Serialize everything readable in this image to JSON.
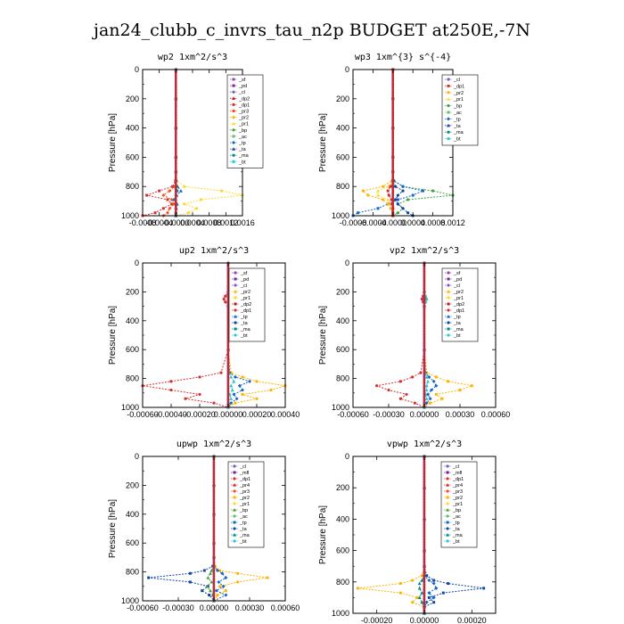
{
  "figure": {
    "title": "jan24_clubb_c_invrs_tau_n2p  BUDGET at250E,-7N"
  },
  "colors": {
    "_sf": "#8e44ad",
    "_pd": "#7b1fa2",
    "_cl": "#7e57c2",
    "_dp2": "#b71c1c",
    "_dp1": "#d32f2f",
    "_pr3": "#f4511e",
    "_pr2": "#ffb300",
    "_pr1": "#fdd835",
    "_bp": "#43a047",
    "_ac": "#66bb6a",
    "_tp": "#1565c0",
    "_ta": "#0d47a1",
    "_ma": "#00897b",
    "_bt": "#26c6da",
    "_mfl": "#6a1b9a",
    "_pr4": "#c62828",
    "zero": "#c62828"
  },
  "chart_data": [
    {
      "type": "line",
      "title": "wp2   1xm^2/s^3",
      "ylabel": "Pressure [hPa]",
      "xlim": [
        -0.0008,
        0.0016
      ],
      "ylim": [
        1000,
        0
      ],
      "xticks": [
        -0.0008,
        -0.0004,
        0.0,
        0.0004,
        0.0008,
        0.0012,
        0.0016
      ],
      "xtick_labels": [
        "-0.0008",
        "-0.0004",
        "-0.0000",
        "0.0004",
        "0.0008",
        "0.0012",
        "0.0016"
      ],
      "yticks": [
        0,
        200,
        400,
        600,
        800,
        1000
      ],
      "ytick_labels": [
        "0",
        "200",
        "400",
        "600",
        "800",
        "1000"
      ],
      "legend": [
        "_sf",
        "_pd",
        "_cl",
        "_dp2",
        "_dp1",
        "_pr3",
        "_pr2",
        "_pr1",
        "_bp",
        "_ac",
        "_tp",
        "_ta",
        "_ma",
        "_bt"
      ],
      "legend_position": "top-right",
      "y": [
        0,
        200,
        400,
        600,
        700,
        760,
        800,
        830,
        860,
        890,
        920,
        950,
        980,
        1000
      ],
      "series": [
        {
          "name": "_pr1",
          "x": [
            0,
            0,
            0,
            0,
            0,
            2e-05,
            0.0002,
            0.0011,
            0.0016,
            0.0006,
            0.0002,
            0.0005,
            0.0003,
            0
          ]
        },
        {
          "name": "_dp1",
          "x": [
            0,
            0,
            0,
            0,
            0,
            -1e-05,
            -8e-05,
            -0.0004,
            -0.0007,
            -0.0002,
            -0.0001,
            -0.0003,
            -0.0005,
            -0.0008
          ]
        },
        {
          "name": "_pr3",
          "x": [
            0,
            0,
            0,
            0,
            0,
            0,
            -3e-05,
            -0.00015,
            -0.0003,
            -0.0001,
            -5e-05,
            -0.00015,
            -0.0002,
            -0.0003
          ]
        },
        {
          "name": "_tp",
          "x": [
            0,
            0,
            0,
            0,
            0,
            0,
            4e-05,
            0.00012,
            2e-05,
            -5e-05,
            3e-05,
            1e-05,
            0,
            0
          ]
        },
        {
          "name": "_ma",
          "x": [
            0,
            0,
            0,
            0,
            0,
            0,
            1e-05,
            3e-05,
            0,
            -2e-05,
            1e-05,
            0,
            0,
            0
          ]
        }
      ]
    },
    {
      "type": "line",
      "title": "wp3   1xm^{3} s^{-4}",
      "ylabel": "Pressure [hPa]",
      "xlim": [
        -0.0008,
        0.0012
      ],
      "ylim": [
        1000,
        0
      ],
      "xticks": [
        -0.0008,
        -0.0004,
        0.0,
        0.0004,
        0.0008,
        0.0012
      ],
      "xtick_labels": [
        "-0.0008",
        "-0.0004",
        "-0.0000",
        "0.0004",
        "0.0008",
        "0.0012"
      ],
      "yticks": [
        0,
        200,
        400,
        600,
        800,
        1000
      ],
      "ytick_labels": [
        "0",
        "200",
        "400",
        "600",
        "800",
        "1000"
      ],
      "legend": [
        "_cl",
        "_dp1",
        "_pr2",
        "_pr1",
        "_bp",
        "_ac",
        "_tp",
        "_ta",
        "_ma",
        "_bt"
      ],
      "legend_position": "top-right",
      "y": [
        0,
        200,
        400,
        600,
        700,
        760,
        800,
        830,
        860,
        890,
        920,
        950,
        980,
        1000
      ],
      "series": [
        {
          "name": "_bp",
          "x": [
            0,
            0,
            0,
            0,
            0,
            2e-05,
            0.0002,
            0.0008,
            0.0012,
            0.0003,
            0.0001,
            0.0002,
            0.0001,
            0
          ]
        },
        {
          "name": "_tp",
          "x": [
            0,
            0,
            0,
            0,
            0,
            1e-05,
            0.0002,
            0.0006,
            0.0004,
            0.0001,
            -0.0001,
            -0.0003,
            -0.0007,
            -0.0008
          ]
        },
        {
          "name": "_pr2",
          "x": [
            0,
            0,
            0,
            0,
            0,
            -2e-05,
            -0.0002,
            -0.0006,
            -0.0005,
            -0.0002,
            -0.0001,
            -5e-05,
            0,
            0
          ]
        },
        {
          "name": "_pr1",
          "x": [
            0,
            0,
            0,
            0,
            0,
            -1e-05,
            -0.0001,
            -0.0003,
            -0.0003,
            -0.0001,
            -5e-05,
            0,
            0,
            0
          ]
        },
        {
          "name": "_ta",
          "x": [
            0,
            0,
            0,
            0,
            0,
            0,
            5e-05,
            0.0002,
            0.0001,
            5e-05,
            0.0001,
            0.0002,
            0.0003,
            0.0004
          ]
        },
        {
          "name": "_dp1",
          "x": [
            0,
            0,
            0,
            0,
            0,
            0,
            -5e-05,
            -0.0001,
            -8e-05,
            -3e-05,
            -2e-05,
            0,
            0,
            0
          ]
        }
      ]
    },
    {
      "type": "line",
      "title": "up2   1xm^2/s^3",
      "ylabel": "Pressure [hPa]",
      "xlim": [
        -0.0006,
        0.0004
      ],
      "ylim": [
        1000,
        0
      ],
      "xticks": [
        -0.0006,
        -0.0004,
        -0.0002,
        0.0,
        0.0002,
        0.0004
      ],
      "xtick_labels": [
        "-0.00060",
        "-0.00040",
        "-0.00020",
        "0.00000",
        "0.00020",
        "0.00040"
      ],
      "yticks": [
        0,
        200,
        400,
        600,
        800,
        1000
      ],
      "ytick_labels": [
        "0",
        "200",
        "400",
        "600",
        "800",
        "1000"
      ],
      "legend": [
        "_sf",
        "_pd",
        "_cl",
        "_pr2",
        "_pr1",
        "_dp2",
        "_dp1",
        "_tp",
        "_ta",
        "_ma",
        "_bt"
      ],
      "legend_position": "top-right",
      "y": [
        0,
        200,
        230,
        250,
        270,
        300,
        600,
        760,
        790,
        820,
        850,
        880,
        910,
        940,
        970,
        1000
      ],
      "series": [
        {
          "name": "_dp1",
          "x": [
            0,
            0,
            -2e-05,
            -3e-05,
            -2e-05,
            0,
            0,
            -5e-05,
            -0.0002,
            -0.0004,
            -0.0006,
            -0.0004,
            -0.0002,
            -0.0003,
            -0.0001,
            0
          ]
        },
        {
          "name": "_pr2",
          "x": [
            0,
            0,
            1e-05,
            2e-05,
            1e-05,
            0,
            0,
            2e-05,
            0.0001,
            0.0002,
            0.0004,
            0.0003,
            0.0001,
            0.0002,
            5e-05,
            0
          ]
        },
        {
          "name": "_tp",
          "x": [
            0,
            0,
            5e-06,
            1e-05,
            5e-06,
            0,
            0,
            1e-05,
            5e-05,
            0.00015,
            8e-05,
            0.0001,
            4e-05,
            6e-05,
            2e-05,
            0
          ]
        },
        {
          "name": "_bt",
          "x": [
            0,
            0,
            1e-05,
            2e-05,
            1e-05,
            0,
            0,
            5e-06,
            2e-05,
            4e-05,
            2e-05,
            3e-05,
            1e-05,
            2e-05,
            0,
            0
          ]
        }
      ]
    },
    {
      "type": "line",
      "title": "vp2   1xm^2/s^3",
      "ylabel": "Pressure [hPa]",
      "xlim": [
        -0.0006,
        0.0006
      ],
      "ylim": [
        1000,
        0
      ],
      "xticks": [
        -0.0006,
        -0.0003,
        0.0,
        0.0003,
        0.0006
      ],
      "xtick_labels": [
        "-0.00060",
        "-0.00030",
        "0.00000",
        "0.00030",
        "0.00060"
      ],
      "yticks": [
        0,
        200,
        400,
        600,
        800,
        1000
      ],
      "ytick_labels": [
        "0",
        "200",
        "400",
        "600",
        "800",
        "1000"
      ],
      "legend": [
        "_sf",
        "_pd",
        "_cl",
        "_pr2",
        "_pr1",
        "_dp2",
        "_dp1",
        "_tp",
        "_ta",
        "_ma",
        "_bt"
      ],
      "legend_position": "top-right",
      "y": [
        0,
        200,
        230,
        250,
        270,
        300,
        600,
        760,
        790,
        820,
        850,
        880,
        910,
        940,
        970,
        1000
      ],
      "series": [
        {
          "name": "_dp1",
          "x": [
            0,
            0,
            -1e-05,
            -2e-05,
            -1e-05,
            0,
            0,
            -3e-05,
            -0.0001,
            -0.0002,
            -0.0004,
            -0.0003,
            -0.00015,
            -0.0002,
            -8e-05,
            0
          ]
        },
        {
          "name": "_pr2",
          "x": [
            0,
            0,
            1e-05,
            2e-05,
            1e-05,
            0,
            0,
            2e-05,
            0.0001,
            0.0002,
            0.0004,
            0.0003,
            0.0001,
            0.00015,
            5e-05,
            0
          ]
        },
        {
          "name": "_tp",
          "x": [
            0,
            0,
            5e-06,
            1e-05,
            5e-06,
            0,
            0,
            1e-05,
            4e-05,
            8e-05,
            0.0001,
            6e-05,
            3e-05,
            5e-05,
            2e-05,
            0
          ]
        },
        {
          "name": "_bt",
          "x": [
            0,
            0,
            1e-05,
            2e-05,
            1e-05,
            0,
            0,
            5e-06,
            2e-05,
            3e-05,
            2e-05,
            2e-05,
            1e-05,
            2e-05,
            0,
            0
          ]
        }
      ]
    },
    {
      "type": "line",
      "title": "upwp   1xm^2/s^3",
      "ylabel": "Pressure [hPa]",
      "xlim": [
        -0.0006,
        0.0006
      ],
      "ylim": [
        1000,
        0
      ],
      "xticks": [
        -0.0006,
        -0.0003,
        0.0,
        0.0003,
        0.0006
      ],
      "xtick_labels": [
        "-0.00060",
        "-0.00030",
        "0.00000",
        "0.00030",
        "0.00060"
      ],
      "yticks": [
        0,
        200,
        400,
        600,
        800,
        1000
      ],
      "ytick_labels": [
        "0",
        "200",
        "400",
        "600",
        "800",
        "1000"
      ],
      "legend": [
        "_cl",
        "_mfl",
        "_dp1",
        "_pr4",
        "_pr3",
        "_pr2",
        "_pr1",
        "_bp",
        "_ac",
        "_tp",
        "_ta",
        "_ma",
        "_bt"
      ],
      "legend_position": "top-right",
      "y": [
        0,
        200,
        400,
        600,
        700,
        760,
        790,
        810,
        840,
        870,
        900,
        930,
        960,
        1000
      ],
      "series": [
        {
          "name": "_pr2",
          "x": [
            0,
            0,
            0,
            0,
            0,
            1e-05,
            5e-05,
            0.0002,
            0.00045,
            0.0002,
            5e-05,
            0.0001,
            3e-05,
            0
          ]
        },
        {
          "name": "_ta",
          "x": [
            0,
            0,
            0,
            0,
            0,
            -1e-05,
            -8e-05,
            -0.0002,
            -0.00055,
            -0.0002,
            -5e-05,
            -0.0001,
            -4e-05,
            0
          ]
        },
        {
          "name": "_tp",
          "x": [
            0,
            0,
            0,
            0,
            0,
            0,
            3e-05,
            7e-05,
            0.0001,
            4e-05,
            8e-05,
            2e-05,
            0.0001,
            0
          ]
        },
        {
          "name": "_bp",
          "x": [
            0,
            0,
            0,
            0,
            0,
            0,
            -2e-05,
            -3e-05,
            -5e-05,
            -2e-05,
            -6e-05,
            -3e-05,
            -1e-05,
            0
          ]
        }
      ]
    },
    {
      "type": "line",
      "title": "vpwp   1xm^2/s^3",
      "ylabel": "Pressure [hPa]",
      "xlim": [
        -0.0003,
        0.0003
      ],
      "ylim": [
        1000,
        0
      ],
      "xticks": [
        -0.0002,
        0.0,
        0.0002
      ],
      "xtick_labels": [
        "-0.00020",
        "0.00000",
        "0.00020"
      ],
      "yticks": [
        0,
        200,
        400,
        600,
        800,
        1000
      ],
      "ytick_labels": [
        "0",
        "200",
        "400",
        "600",
        "800",
        "1000"
      ],
      "legend": [
        "_cl",
        "_mfl",
        "_dp1",
        "_pr4",
        "_pr3",
        "_pr2",
        "_pr1",
        "_bp",
        "_ac",
        "_tp",
        "_ta",
        "_ma",
        "_bt"
      ],
      "legend_position": "top-right",
      "y": [
        0,
        200,
        400,
        600,
        700,
        760,
        790,
        810,
        840,
        870,
        900,
        930,
        960,
        1000
      ],
      "series": [
        {
          "name": "_pr2",
          "x": [
            0,
            0,
            0,
            0,
            0,
            -1e-05,
            -5e-05,
            -0.0001,
            -0.00028,
            -0.0001,
            -3e-05,
            -5e-05,
            0,
            0
          ]
        },
        {
          "name": "_ta",
          "x": [
            0,
            0,
            0,
            0,
            0,
            1e-05,
            4e-05,
            0.0001,
            0.00025,
            8e-05,
            2e-05,
            4e-05,
            0,
            0
          ]
        },
        {
          "name": "_tp",
          "x": [
            0,
            0,
            0,
            0,
            0,
            0,
            2e-05,
            4e-05,
            5e-05,
            2e-05,
            4e-05,
            1e-05,
            0,
            0
          ]
        },
        {
          "name": "_ma",
          "x": [
            0,
            0,
            0,
            0,
            0,
            0,
            -1e-05,
            -2e-05,
            -2e-05,
            -1e-05,
            -2e-05,
            -1e-05,
            0,
            0
          ]
        }
      ]
    }
  ]
}
